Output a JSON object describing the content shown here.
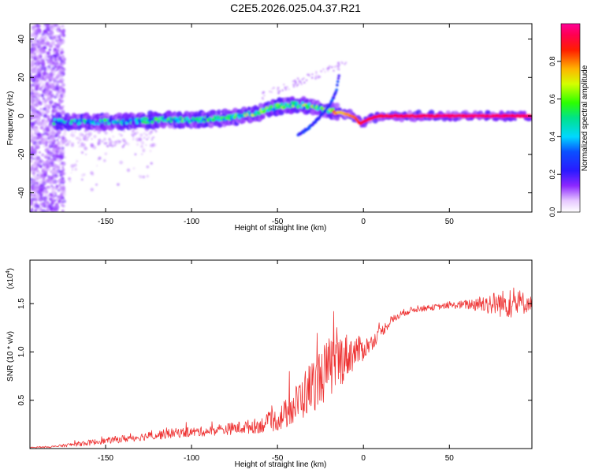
{
  "figure_title": "C2E5.2026.025.04.37.R21",
  "chart_data": [
    {
      "type": "heatmap",
      "title": "C2E5.2026.025.04.37.R21",
      "xlabel": "Height of straight line (km)",
      "ylabel": "Frequency (Hz)",
      "xlim": [
        -194,
        98
      ],
      "ylim": [
        -50,
        48
      ],
      "xticks": [
        -150,
        -100,
        -50,
        0,
        50
      ],
      "xtick_labels": [
        "-150",
        "-100",
        "-50",
        "0",
        "50"
      ],
      "yticks": [
        -40,
        -20,
        0,
        20,
        40
      ],
      "ytick_labels": [
        "-40",
        "-20",
        "0",
        "20",
        "40"
      ],
      "colorbar": {
        "label": "Normalized spectral amplitude",
        "range": [
          0,
          1
        ],
        "ticks": [
          0.0,
          0.2,
          0.4,
          0.6,
          0.8
        ],
        "tick_labels": [
          "0.0",
          "0.2",
          "0.4",
          "0.6",
          "0.8"
        ]
      },
      "ridge": {
        "x": [
          -180,
          -160,
          -140,
          -120,
          -100,
          -80,
          -70,
          -60,
          -50,
          -40,
          -30,
          -25,
          -20,
          -15,
          -10,
          -5,
          -2,
          0,
          5,
          10,
          20,
          40,
          60,
          80,
          98
        ],
        "freq": [
          -3,
          -3,
          -3,
          -2,
          -2,
          -1,
          0,
          2,
          5,
          6,
          5,
          4,
          3,
          2,
          1,
          -1,
          -4,
          -3,
          -1,
          0,
          0,
          0,
          0,
          0,
          0
        ],
        "amplitude": [
          0.35,
          0.38,
          0.4,
          0.42,
          0.45,
          0.48,
          0.5,
          0.5,
          0.52,
          0.55,
          0.55,
          0.5,
          0.7,
          0.75,
          0.8,
          0.85,
          0.9,
          0.95,
          0.95,
          0.95,
          0.96,
          0.97,
          0.98,
          0.98,
          0.98
        ]
      },
      "chirp": {
        "x": [
          -38,
          -30,
          -25,
          -20,
          -16,
          -14
        ],
        "freq": [
          -10,
          -5,
          0,
          5,
          12,
          22
        ]
      }
    },
    {
      "type": "line",
      "xlabel": "Height of straight line (km)",
      "ylabel": "SNR (10 * v/v)",
      "y_multiplier": "(x10",
      "y_multiplier_exp": "4",
      "y_multiplier_close": ")",
      "xlim": [
        -194,
        98
      ],
      "ylim": [
        0,
        1.95
      ],
      "xticks": [
        -150,
        -100,
        -50,
        0,
        50
      ],
      "xtick_labels": [
        "-150",
        "-100",
        "-50",
        "0",
        "50"
      ],
      "yticks": [
        0.5,
        1.0,
        1.5
      ],
      "ytick_labels": [
        "0.5",
        "1.0",
        "1.5"
      ],
      "line_color": "#ee3333",
      "series": [
        {
          "name": "SNR",
          "x": [
            -194,
            -180,
            -170,
            -160,
            -150,
            -140,
            -130,
            -120,
            -110,
            -100,
            -90,
            -80,
            -70,
            -60,
            -55,
            -50,
            -45,
            -40,
            -35,
            -30,
            -25,
            -20,
            -15,
            -10,
            -5,
            0,
            5,
            10,
            15,
            20,
            25,
            30,
            40,
            50,
            60,
            70,
            80,
            90,
            98
          ],
          "y": [
            0.01,
            0.02,
            0.04,
            0.06,
            0.08,
            0.1,
            0.12,
            0.14,
            0.16,
            0.17,
            0.18,
            0.2,
            0.22,
            0.24,
            0.27,
            0.3,
            0.36,
            0.44,
            0.55,
            0.65,
            0.74,
            0.83,
            0.9,
            0.96,
            1.0,
            1.03,
            1.1,
            1.2,
            1.3,
            1.37,
            1.42,
            1.44,
            1.46,
            1.48,
            1.49,
            1.5,
            1.5,
            1.5,
            1.51
          ],
          "noise": [
            0.005,
            0.01,
            0.02,
            0.03,
            0.03,
            0.04,
            0.04,
            0.05,
            0.05,
            0.05,
            0.05,
            0.06,
            0.07,
            0.08,
            0.1,
            0.12,
            0.16,
            0.2,
            0.25,
            0.28,
            0.3,
            0.32,
            0.3,
            0.24,
            0.18,
            0.12,
            0.08,
            0.06,
            0.05,
            0.04,
            0.04,
            0.03,
            0.03,
            0.03,
            0.05,
            0.1,
            0.14,
            0.16,
            0.06
          ]
        }
      ]
    }
  ]
}
